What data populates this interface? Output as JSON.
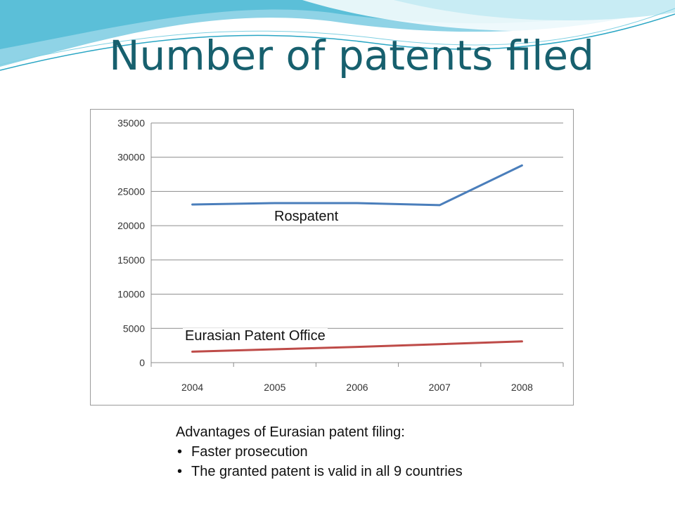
{
  "slide": {
    "title": "Number of patents filed"
  },
  "chart_data": {
    "type": "line",
    "categories": [
      "2004",
      "2005",
      "2006",
      "2007",
      "2008"
    ],
    "series": [
      {
        "name": "Rospatent",
        "values": [
          23100,
          23300,
          23300,
          23000,
          28800
        ],
        "color": "#4a7ebb"
      },
      {
        "name": "Eurasian Patent Office",
        "values": [
          1600,
          1950,
          2300,
          2700,
          3100
        ],
        "color": "#be4b48"
      }
    ],
    "ylim": [
      0,
      35000
    ],
    "yticks": [
      0,
      5000,
      10000,
      15000,
      20000,
      25000,
      30000,
      35000
    ],
    "grid": true,
    "legend": "inline labels"
  },
  "notes": {
    "heading": "Advantages of Eurasian patent filing:",
    "items": [
      "Faster prosecution",
      "The granted patent is valid in all 9 countries"
    ]
  }
}
